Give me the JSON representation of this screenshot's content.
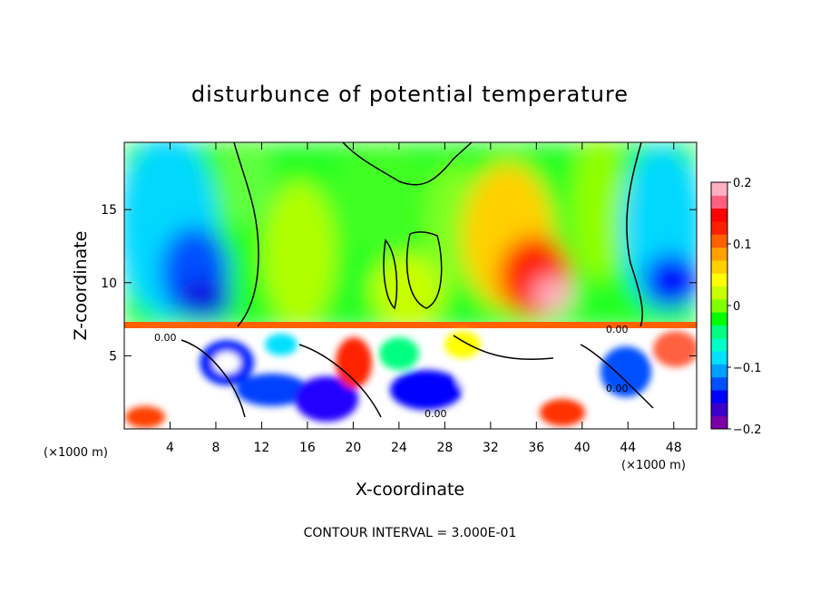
{
  "chart_data": {
    "type": "heatmap",
    "title": "disturbunce of potential temperature",
    "xlabel": "X-coordinate",
    "ylabel": "Z-coordinate",
    "x_unit": "(×1000 m)",
    "y_unit": "(×1000 m)",
    "xlim": [
      0,
      50
    ],
    "ylim": [
      0,
      19.6
    ],
    "x_ticks": [
      4,
      8,
      12,
      16,
      20,
      24,
      28,
      32,
      36,
      40,
      44,
      48
    ],
    "y_ticks": [
      5,
      10,
      15
    ],
    "colorbar": {
      "range": [
        -0.2,
        0.2
      ],
      "tick_values": [
        0.2,
        0.1,
        0,
        -0.1,
        -0.2
      ],
      "tick_labels": [
        "0.2",
        "0.1",
        "0",
        "−0.1",
        "−0.2"
      ],
      "colors": [
        "#7b00a8",
        "#3a00c8",
        "#0000ff",
        "#0050ff",
        "#00a0ff",
        "#00e0ff",
        "#00ffc8",
        "#00ff80",
        "#00ff00",
        "#80ff00",
        "#c8ff00",
        "#ffff00",
        "#ffd000",
        "#ffa000",
        "#ff6000",
        "#ff2000",
        "#ff0000",
        "#ff6080",
        "#ffb0c0"
      ]
    },
    "contour_labels": [
      "0.00"
    ],
    "footer": "CONTOUR INTERVAL = 3.000E-01"
  }
}
